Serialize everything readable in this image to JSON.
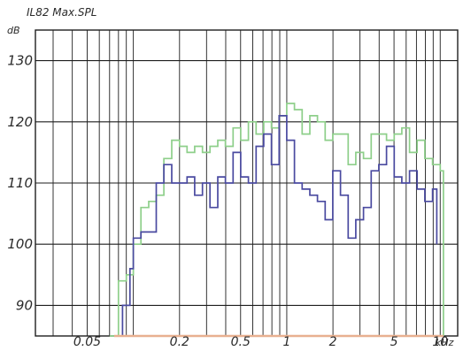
{
  "chart_data": {
    "type": "line",
    "title": "IL82 Max.SPL",
    "ylabel": "dB",
    "xlabel_unit": "kHz",
    "x_scale": "log",
    "xlim": [
      0.023,
      13
    ],
    "ylim": [
      85,
      135
    ],
    "grid": true,
    "y_ticks": [
      90,
      100,
      110,
      120,
      130
    ],
    "y_tick_labels": [
      "90",
      "100",
      "110",
      "120",
      "130"
    ],
    "x_ticks": [
      0.05,
      0.2,
      0.5,
      1,
      2,
      5,
      10
    ],
    "x_tick_labels": [
      "0.05",
      "0.2",
      "0.5",
      "1",
      "2",
      "5",
      "10"
    ],
    "x_minor_grid": [
      0.03,
      0.04,
      0.05,
      0.06,
      0.07,
      0.08,
      0.09,
      0.1,
      0.2,
      0.3,
      0.4,
      0.5,
      0.6,
      0.7,
      0.8,
      0.9,
      1,
      2,
      3,
      4,
      5,
      6,
      7,
      8,
      9,
      10
    ],
    "colors": {
      "green": "#8ecf8a",
      "blue": "#4a4aa0",
      "baseline": "#e8b090",
      "grid": "#1e1e1e"
    },
    "series": [
      {
        "color": "green",
        "x": [
          0.07,
          0.08,
          0.09,
          0.1,
          0.112,
          0.126,
          0.141,
          0.158,
          0.178,
          0.2,
          0.224,
          0.251,
          0.282,
          0.316,
          0.355,
          0.398,
          0.447,
          0.501,
          0.562,
          0.631,
          0.708,
          0.794,
          0.891,
          1.0,
          1.122,
          1.259,
          1.413,
          1.585,
          1.778,
          1.995,
          2.239,
          2.512,
          2.818,
          3.162,
          3.548,
          3.981,
          4.467,
          5.012,
          5.623,
          6.31,
          7.079,
          7.943,
          8.913,
          10.0,
          10.5
        ],
        "y": [
          85,
          94,
          95,
          100,
          106,
          107,
          108,
          114,
          117,
          116,
          115,
          116,
          115,
          116,
          117,
          116,
          119,
          117,
          120,
          118,
          120,
          119,
          121,
          123,
          122,
          118,
          121,
          120,
          117,
          118,
          118,
          113,
          115,
          114,
          118,
          118,
          117,
          118,
          119,
          115,
          117,
          114,
          113,
          112,
          85
        ]
      },
      {
        "color": "blue",
        "x": [
          0.075,
          0.085,
          0.095,
          0.1,
          0.112,
          0.126,
          0.141,
          0.158,
          0.178,
          0.2,
          0.224,
          0.251,
          0.282,
          0.316,
          0.355,
          0.398,
          0.447,
          0.501,
          0.562,
          0.631,
          0.708,
          0.794,
          0.891,
          1.0,
          1.122,
          1.259,
          1.413,
          1.585,
          1.778,
          1.995,
          2.239,
          2.512,
          2.818,
          3.162,
          3.548,
          3.981,
          4.467,
          5.012,
          5.623,
          6.31,
          7.079,
          7.943,
          8.913,
          9.5
        ],
        "y": [
          85,
          90,
          96,
          101,
          102,
          102,
          110,
          113,
          110,
          110,
          111,
          108,
          110,
          106,
          111,
          110,
          115,
          111,
          110,
          116,
          118,
          113,
          121,
          117,
          110,
          109,
          108,
          107,
          104,
          112,
          108,
          101,
          104,
          106,
          112,
          113,
          116,
          111,
          110,
          112,
          109,
          107,
          109,
          100
        ]
      },
      {
        "color": "baseline",
        "x": [
          0.075,
          10.5
        ],
        "y": [
          85,
          85
        ]
      }
    ]
  }
}
